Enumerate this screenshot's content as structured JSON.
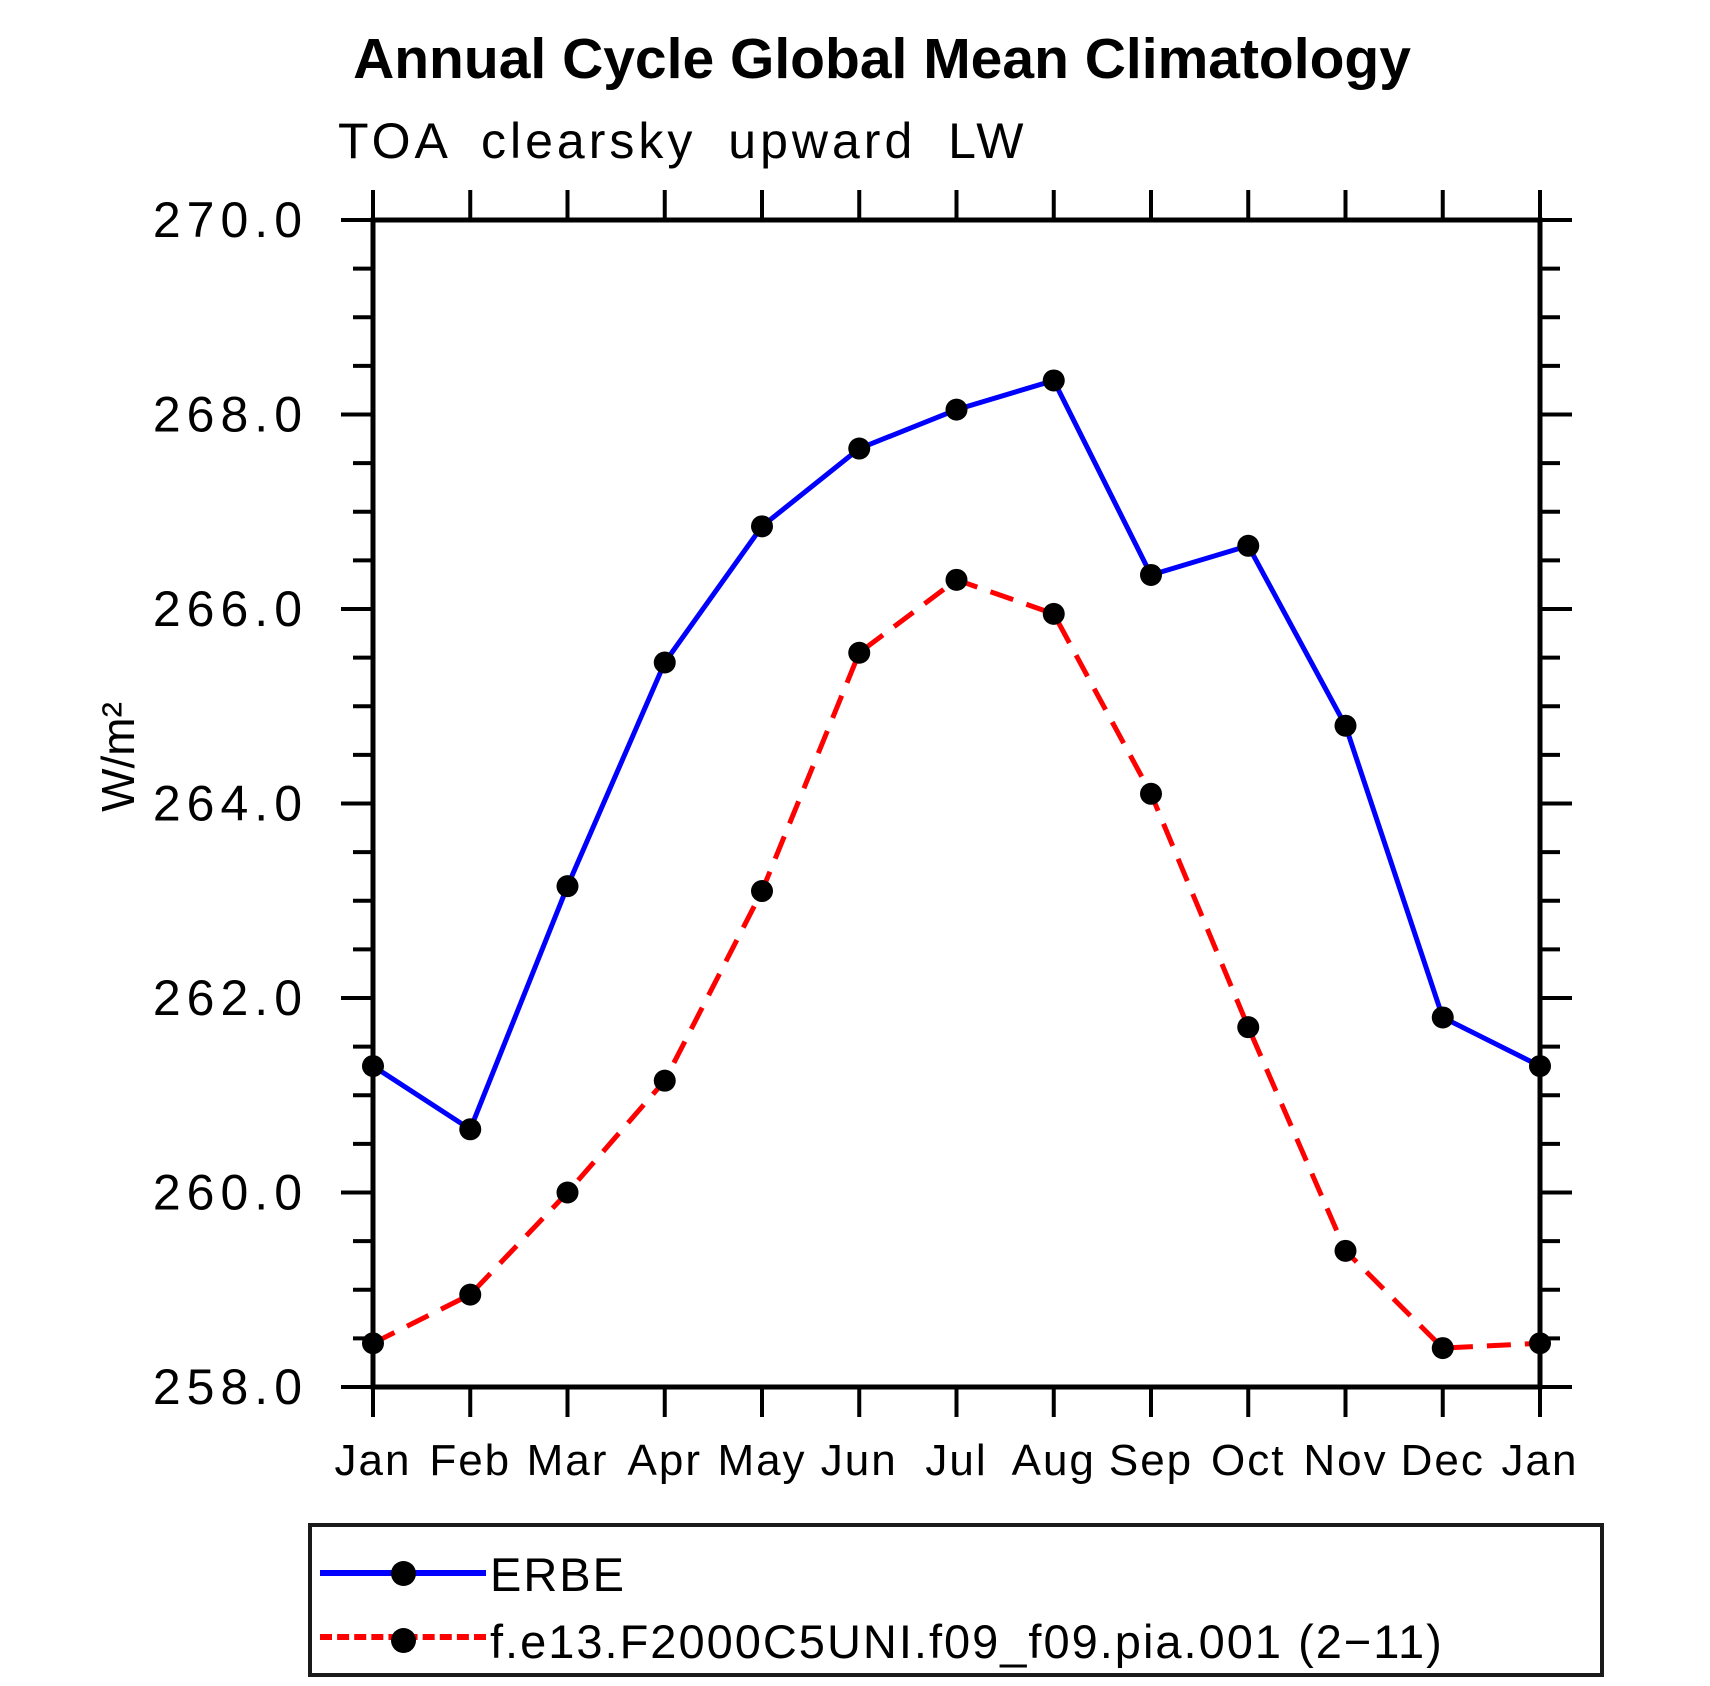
{
  "chart_data": {
    "type": "line",
    "title": "Annual Cycle Global Mean Climatology",
    "subtitle": "TOA clearsky upward LW",
    "ylabel": "W/m²",
    "xlabel": "",
    "categories": [
      "Jan",
      "Feb",
      "Mar",
      "Apr",
      "May",
      "Jun",
      "Jul",
      "Aug",
      "Sep",
      "Oct",
      "Nov",
      "Dec",
      "Jan"
    ],
    "ylim": [
      258.0,
      270.0
    ],
    "y_major_tick_step": 2.0,
    "y_minor_tick_step": 0.5,
    "y_tick_labels": [
      "258.0",
      "260.0",
      "262.0",
      "264.0",
      "266.0",
      "268.0",
      "270.0"
    ],
    "grid": false,
    "legend_position": "bottom",
    "axis_color": "#000000",
    "marker": "filled-circle",
    "series": [
      {
        "name": "ERBE",
        "color": "#0000ff",
        "line_style": "solid",
        "marker_color": "#000000",
        "values": [
          261.3,
          260.65,
          263.15,
          265.45,
          266.85,
          267.65,
          268.05,
          268.35,
          266.35,
          266.65,
          264.8,
          261.8,
          261.3
        ]
      },
      {
        "name": "f.e13.F2000C5UNI.f09_f09.pia.001 (2−11)",
        "color": "#ff0000",
        "line_style": "dashed",
        "marker_color": "#000000",
        "values": [
          258.45,
          258.95,
          260.0,
          261.15,
          263.1,
          265.55,
          266.3,
          265.95,
          264.1,
          261.7,
          259.4,
          258.4,
          258.45
        ]
      }
    ]
  }
}
